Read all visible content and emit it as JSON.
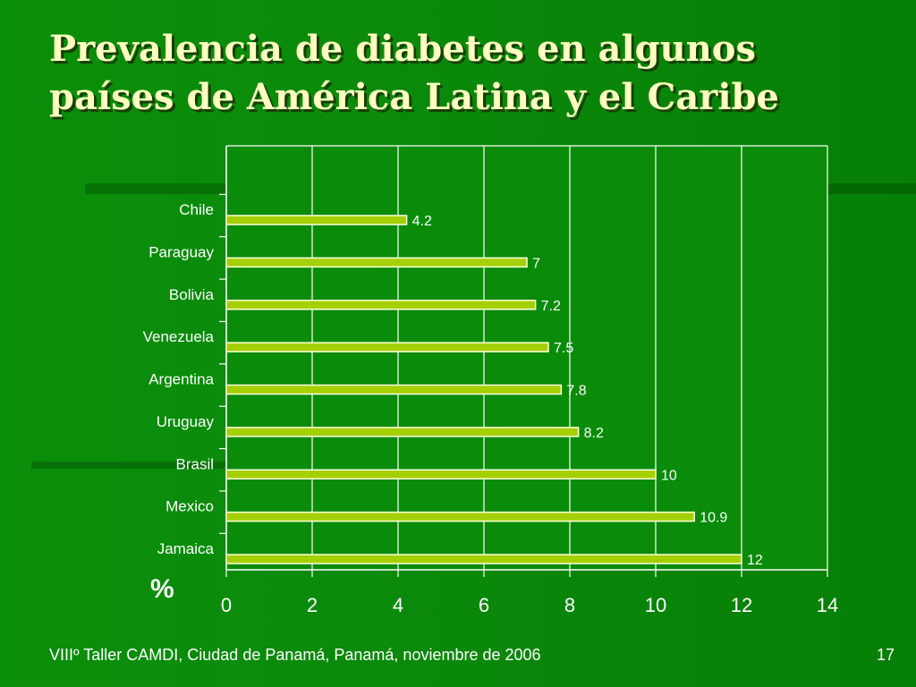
{
  "title_lines": [
    "Prevalencia de diabetes en algunos",
    "países de América Latina y el Caribe"
  ],
  "unit_label": "%",
  "footer": {
    "text": "VIIIº Taller CAMDI, Ciudad de Panamá, Panamá, noviembre de 2006",
    "page": "17"
  },
  "colors": {
    "background": "#0a8f0a",
    "title": "#ffffc0",
    "bar_fill": "#a4d000",
    "bar_stroke": "#ffffe0",
    "grid": "#ffffff",
    "text": "#ffffff"
  },
  "chart_data": {
    "type": "bar",
    "orientation": "horizontal",
    "categories": [
      "Chile",
      "Paraguay",
      "Bolivia",
      "Venezuela",
      "Argentina",
      "Uruguay",
      "Brasil",
      "Mexico",
      "Jamaica"
    ],
    "values": [
      4.2,
      7,
      7.2,
      7.5,
      7.8,
      8.2,
      10,
      10.9,
      12
    ],
    "value_labels": [
      "4.2",
      "7",
      "7.2",
      "7.5",
      "7.8",
      "8.2",
      "10",
      "10.9",
      "12"
    ],
    "xlim": [
      0,
      14
    ],
    "xticks": [
      0,
      2,
      4,
      6,
      8,
      10,
      12,
      14
    ],
    "xtick_labels": [
      "0",
      "2",
      "4",
      "6",
      "8",
      "10",
      "12",
      "14"
    ],
    "grid": true,
    "legend": "none"
  }
}
